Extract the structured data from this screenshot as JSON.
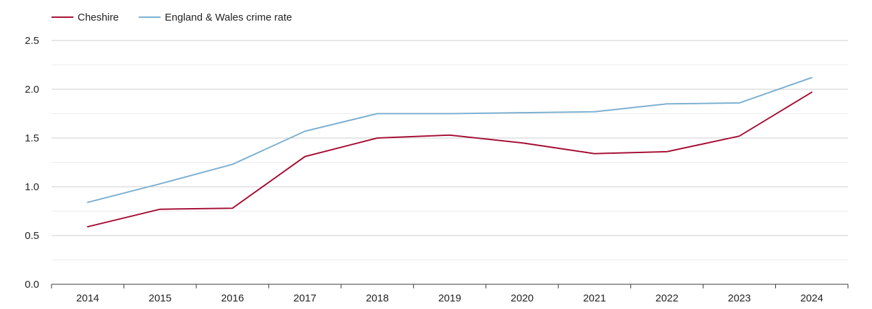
{
  "chart_data": {
    "type": "line",
    "title": "",
    "xlabel": "",
    "ylabel": "",
    "x": [
      "2014",
      "2015",
      "2016",
      "2017",
      "2018",
      "2019",
      "2020",
      "2021",
      "2022",
      "2023",
      "2024"
    ],
    "ylim": [
      0,
      2.5
    ],
    "yticks": [
      "0.0",
      "0.5",
      "1.0",
      "1.5",
      "2.0",
      "2.5"
    ],
    "grid": true,
    "legend_position": "top-left",
    "series": [
      {
        "name": "Cheshire",
        "color": "#a50d33",
        "values": [
          0.59,
          0.77,
          0.78,
          1.31,
          1.5,
          1.53,
          1.45,
          1.34,
          1.36,
          1.52,
          1.97
        ]
      },
      {
        "name": "England & Wales crime rate",
        "color": "#7aafd0",
        "values": [
          0.84,
          1.03,
          1.23,
          1.57,
          1.75,
          1.75,
          1.76,
          1.77,
          1.85,
          1.86,
          2.12
        ]
      }
    ]
  }
}
